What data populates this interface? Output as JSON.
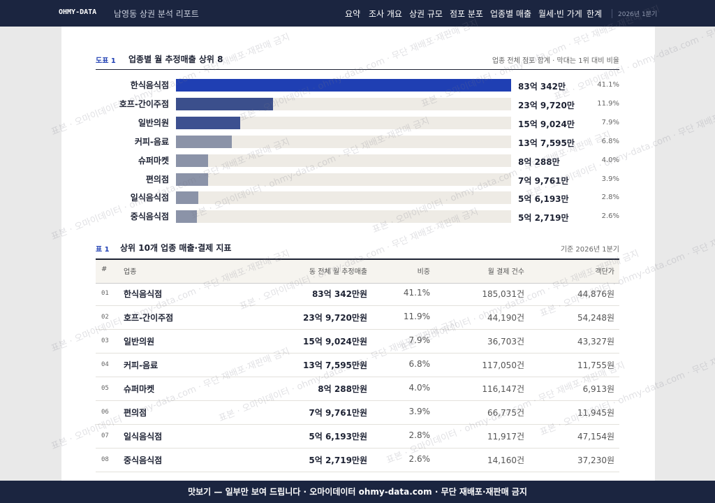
{
  "nav": {
    "brand": "OHMY-DATA",
    "title": "남영동 상권 분석 리포트",
    "links": [
      "요약",
      "조사 개요",
      "상권 규모",
      "점포 분포",
      "업종별 매출",
      "월세·빈 가게",
      "한계"
    ],
    "period": "2026년 1분기"
  },
  "watermark": "표본 · 오마이데이터 · ohmy-data.com · 무단 재배포·재판매 금지",
  "figure": {
    "tag": "도표 1",
    "note": "업종 전체 점포 합계 · 막대는 1위 대비 비율"
  },
  "chart_data": {
    "type": "bar",
    "title": "업종별 월 추정매출 상위 8",
    "categories": [
      "한식음식점",
      "호프-간이주점",
      "일반의원",
      "커피-음료",
      "슈퍼마켓",
      "편의점",
      "일식음식점",
      "중식음식점"
    ],
    "values": [
      830342,
      239720,
      159024,
      137595,
      80288,
      79761,
      56193,
      52719
    ],
    "value_labels": [
      "83억 342만",
      "23억 9,720만",
      "15억 9,024만",
      "13억 7,595만",
      "8억 288만",
      "7억 9,761만",
      "5억 6,193만",
      "5억 2,719만"
    ],
    "colors": [
      "#1f3fb3",
      "#3b4f8c",
      "#3d5090",
      "#8b93a8",
      "#8b93a8",
      "#8b93a8",
      "#8b93a8",
      "#8b93a8"
    ],
    "track_color": "#eeebe5",
    "shares": {
      "values": [
        41.1,
        11.9,
        7.9,
        6.8,
        4.0,
        3.9,
        2.8,
        2.6
      ],
      "value_labels": [
        "41.1%",
        "11.9%",
        "7.9%",
        "6.8%",
        "4.0%",
        "3.9%",
        "2.8%",
        "2.6%"
      ]
    }
  },
  "table": {
    "tag": "표 1",
    "title": "상위 10개 업종 매출·결제 지표",
    "note": "기준 2026년 1분기",
    "headers": [
      "#",
      "업종",
      "동 전체 월 추정매출",
      "비중",
      "월 결제 건수",
      "객단가"
    ],
    "rows": [
      [
        "01",
        "한식음식점",
        "83억 342만원",
        "41.1%",
        "185,031건",
        "44,876원"
      ],
      [
        "02",
        "호프-간이주점",
        "23억 9,720만원",
        "11.9%",
        "44,190건",
        "54,248원"
      ],
      [
        "03",
        "일반의원",
        "15억 9,024만원",
        "7.9%",
        "36,703건",
        "43,327원"
      ],
      [
        "04",
        "커피-음료",
        "13억 7,595만원",
        "6.8%",
        "117,050건",
        "11,755원"
      ],
      [
        "05",
        "슈퍼마켓",
        "8억 288만원",
        "4.0%",
        "116,147건",
        "6,913원"
      ],
      [
        "06",
        "편의점",
        "7억 9,761만원",
        "3.9%",
        "66,775건",
        "11,945원"
      ],
      [
        "07",
        "일식음식점",
        "5억 6,193만원",
        "2.8%",
        "11,917건",
        "47,154원"
      ],
      [
        "08",
        "중식음식점",
        "5억 2,719만원",
        "2.6%",
        "14,160건",
        "37,230원"
      ]
    ]
  },
  "banner": "맛보기 — 일부만 보여 드립니다 · 오마이데이터 ohmy-data.com · 무단 재배포·재판매 금지"
}
